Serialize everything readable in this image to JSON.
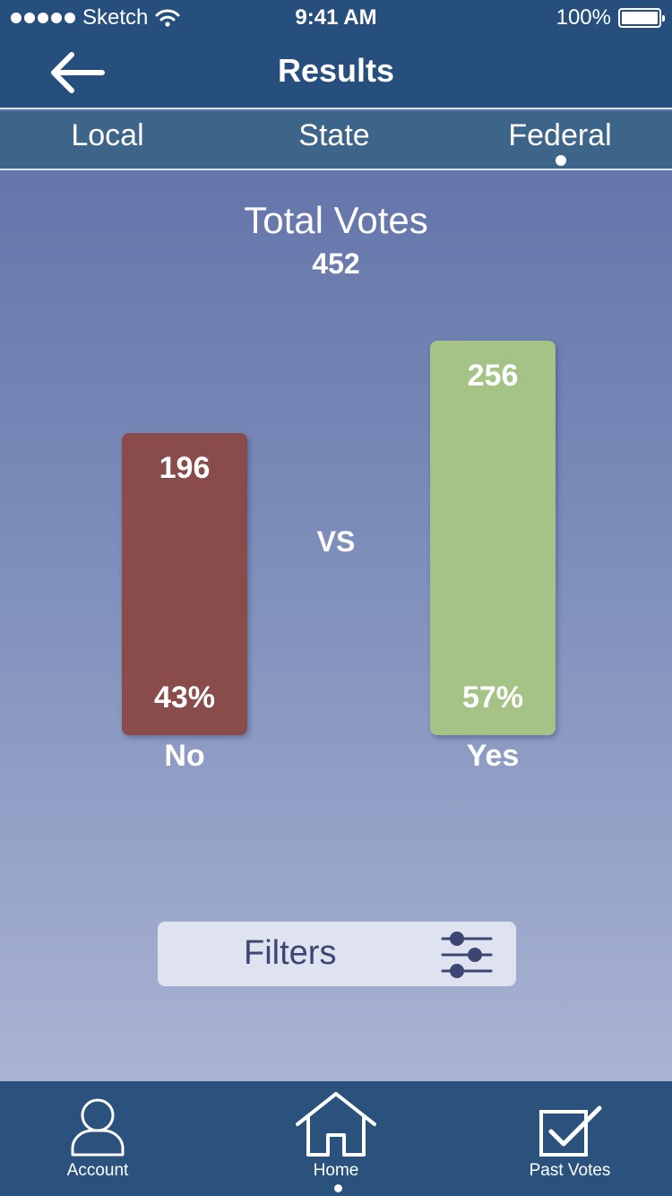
{
  "status_bar": {
    "carrier": "Sketch",
    "time": "9:41 AM",
    "battery": "100%"
  },
  "nav": {
    "title": "Results",
    "back_icon": "arrow-left-icon"
  },
  "tabs": [
    {
      "label": "Local"
    },
    {
      "label": "State"
    },
    {
      "label": "Federal",
      "selected": true
    }
  ],
  "totals": {
    "title": "Total Votes",
    "value": "452"
  },
  "chart_data": {
    "type": "bar",
    "categories": [
      "No",
      "Yes"
    ],
    "values": [
      196,
      256
    ],
    "percentages": [
      "43%",
      "57%"
    ],
    "colors": [
      "#8a4b4b",
      "#a6c387"
    ],
    "separator": "VS"
  },
  "filters": {
    "label": "Filters",
    "icon": "sliders-icon"
  },
  "tabbar": {
    "items": [
      {
        "label": "Account",
        "icon": "user-icon"
      },
      {
        "label": "Home",
        "icon": "home-icon",
        "selected": true
      },
      {
        "label": "Past Votes",
        "icon": "checkbox-icon"
      }
    ]
  },
  "colors": {
    "header": "#264f7e",
    "tabs_bg": "#3d6589",
    "tabbar_bg": "#2b527d",
    "filters_text": "#3c4673"
  }
}
